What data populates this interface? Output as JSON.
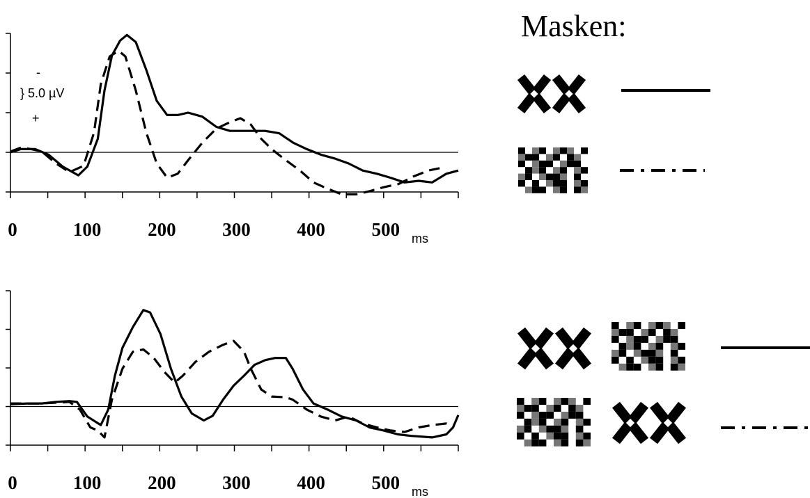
{
  "legend_title": "Masken:",
  "chart_data": [
    {
      "type": "line",
      "x_label": "ms",
      "annotations": [
        "-",
        "} 5.0 µV",
        "+"
      ],
      "xlim": [
        0,
        600
      ],
      "xticks": [
        0,
        100,
        200,
        300,
        400,
        500
      ],
      "xminorticks": [
        50,
        150,
        250,
        350,
        450,
        550,
        600
      ],
      "ylim": [
        5,
        -15
      ],
      "yticks": [
        5,
        0,
        -5,
        -10,
        -15
      ],
      "zero_line": true,
      "series": [
        {
          "color": "#000000",
          "style": "solid",
          "x": [
            0,
            14,
            33,
            51,
            70,
            91,
            103,
            117,
            126,
            136,
            147,
            156,
            168,
            182,
            196,
            210,
            224,
            238,
            257,
            276,
            294,
            322,
            341,
            360,
            379,
            397,
            416,
            435,
            453,
            472,
            491,
            509,
            528,
            547,
            565,
            584,
            600
          ],
          "values": [
            0,
            -0.4,
            -0.4,
            0.3,
            1.8,
            2.9,
            1.8,
            -1.7,
            -7.8,
            -12.2,
            -14.1,
            -14.8,
            -13.9,
            -10.4,
            -6.5,
            -4.7,
            -4.7,
            -5.0,
            -4.5,
            -3.2,
            -2.7,
            -2.7,
            -2.7,
            -2.4,
            -1.2,
            -0.4,
            0.3,
            0.8,
            1.4,
            2.3,
            2.7,
            3.2,
            3.8,
            3.6,
            3.8,
            2.7,
            2.3
          ]
        },
        {
          "color": "#000000",
          "style": "dashed",
          "x": [
            0,
            14,
            28,
            42,
            61,
            79,
            98,
            112,
            121,
            133,
            145,
            154,
            168,
            182,
            196,
            210,
            224,
            238,
            257,
            276,
            294,
            308,
            322,
            336,
            350,
            369,
            388,
            406,
            425,
            444,
            463,
            481,
            500,
            520,
            541,
            560,
            575
          ],
          "values": [
            -0.1,
            -0.6,
            -0.4,
            -0.1,
            1.4,
            2.5,
            1.7,
            -2.5,
            -8.6,
            -12.1,
            -12.8,
            -12.1,
            -7.8,
            -2.5,
            1.4,
            3.2,
            2.7,
            1.0,
            -1.2,
            -3.0,
            -3.8,
            -4.3,
            -3.5,
            -1.7,
            -0.4,
            1.0,
            2.3,
            3.8,
            4.6,
            5.3,
            5.3,
            4.9,
            4.4,
            4.0,
            3.0,
            2.3,
            2.0
          ]
        }
      ]
    },
    {
      "type": "line",
      "x_label": "ms",
      "xlim": [
        0,
        600
      ],
      "xticks": [
        0,
        100,
        200,
        300,
        400,
        500
      ],
      "xminorticks": [
        50,
        150,
        250,
        350,
        450,
        550,
        600
      ],
      "ylim": [
        5,
        -15
      ],
      "yticks": [
        5,
        0,
        -5,
        -10,
        -15
      ],
      "zero_line": true,
      "series": [
        {
          "color": "#000000",
          "style": "solid",
          "x": [
            0,
            23,
            42,
            61,
            79,
            89,
            103,
            121,
            131,
            140,
            150,
            164,
            178,
            187,
            201,
            215,
            229,
            243,
            259,
            271,
            285,
            299,
            313,
            327,
            341,
            355,
            369,
            378,
            392,
            406,
            425,
            444,
            463,
            481,
            500,
            519,
            537,
            565,
            584,
            593,
            600
          ],
          "values": [
            -0.3,
            -0.4,
            -0.4,
            -0.6,
            -0.7,
            -0.6,
            1.3,
            2.4,
            0.4,
            -4.0,
            -7.6,
            -10.3,
            -12.5,
            -12.2,
            -9.4,
            -4.9,
            -1.3,
            0.9,
            1.8,
            1.2,
            -0.9,
            -2.7,
            -4.0,
            -5.4,
            -6.0,
            -6.3,
            -6.3,
            -4.9,
            -2.2,
            -0.4,
            0.4,
            1.3,
            1.8,
            2.7,
            3.1,
            3.6,
            3.8,
            4.0,
            3.6,
            2.7,
            1.1
          ]
        },
        {
          "color": "#000000",
          "style": "dashed",
          "x": [
            0,
            42,
            79,
            93,
            107,
            117,
            126,
            136,
            150,
            164,
            178,
            192,
            206,
            220,
            231,
            248,
            266,
            285,
            299,
            313,
            322,
            336,
            350,
            369,
            378,
            397,
            416,
            435,
            453,
            472,
            491,
            509,
            528,
            547,
            565,
            584,
            593
          ],
          "values": [
            -0.4,
            -0.4,
            -0.6,
            0.4,
            2.7,
            3.1,
            4.0,
            -0.9,
            -4.9,
            -7.1,
            -7.4,
            -6.3,
            -4.5,
            -3.1,
            -4.0,
            -5.8,
            -7.1,
            -8.0,
            -8.5,
            -7.1,
            -4.9,
            -2.2,
            -1.3,
            -1.2,
            -0.9,
            0.4,
            1.3,
            1.8,
            1.3,
            2.2,
            2.7,
            3.1,
            3.3,
            2.7,
            2.4,
            2.2,
            2.4
          ]
        }
      ]
    }
  ]
}
